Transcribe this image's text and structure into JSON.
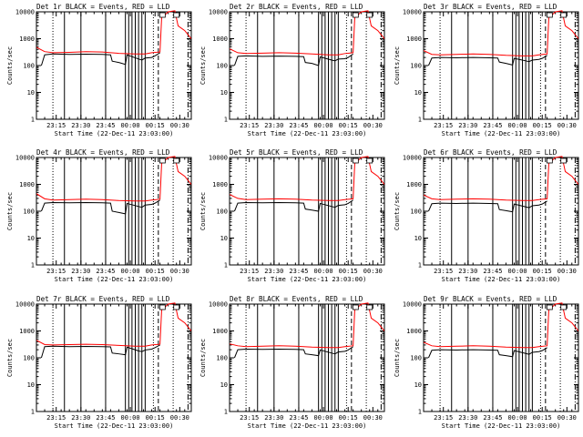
{
  "chart_data": [
    {
      "type": "line",
      "title": "Det 1r BLACK = Events, RED = LLD",
      "xlabel": "Start Time (22-Dec-11 23:03:00)",
      "ylabel": "Counts/sec",
      "x_tick_labels": [
        "23:15",
        "23:30",
        "23:45",
        "00:00",
        "00:15",
        "00:30"
      ],
      "y_tick_labels": [
        "1",
        "10",
        "100",
        "1000",
        "10000"
      ],
      "yscale": "log",
      "ylim": [
        1,
        10000
      ],
      "xlim_minutes": [
        0,
        94
      ],
      "series": [
        {
          "name": "BLACK = Events",
          "color": "#000000",
          "x": [
            3,
            5,
            10,
            20,
            30,
            40,
            45,
            46,
            50,
            54,
            55,
            62,
            64,
            66,
            70,
            72,
            75
          ],
          "y": [
            100,
            250,
            270,
            260,
            265,
            260,
            250,
            145,
            130,
            110,
            250,
            175,
            160,
            190,
            200,
            230,
            300
          ]
        },
        {
          "name": "RED = LLD",
          "color": "#ff0000",
          "x": [
            0,
            5,
            10,
            20,
            30,
            40,
            50,
            60,
            66,
            70,
            75,
            76,
            80,
            84,
            86,
            90,
            94
          ],
          "y": [
            480,
            330,
            300,
            310,
            330,
            320,
            285,
            270,
            270,
            300,
            320,
            6000,
            10000,
            11000,
            3000,
            2000,
            1000
          ]
        }
      ]
    },
    {
      "type": "line",
      "title": "Det 2r BLACK = Events, RED = LLD",
      "xlabel": "Start Time (22-Dec-11 23:03:00)",
      "ylabel": "Counts/sec",
      "x_tick_labels": [
        "23:15",
        "23:30",
        "23:45",
        "00:00",
        "00:15",
        "00:30"
      ],
      "y_tick_labels": [
        "1",
        "10",
        "100",
        "1000",
        "10000"
      ],
      "yscale": "log",
      "ylim": [
        1,
        10000
      ],
      "xlim_minutes": [
        0,
        94
      ],
      "series": [
        {
          "name": "BLACK = Events",
          "color": "#000000",
          "x": [
            3,
            5,
            10,
            20,
            30,
            40,
            45,
            46,
            50,
            54,
            55,
            62,
            64,
            66,
            70,
            72,
            75
          ],
          "y": [
            100,
            220,
            230,
            220,
            225,
            220,
            215,
            130,
            120,
            100,
            210,
            160,
            150,
            175,
            180,
            200,
            270
          ]
        },
        {
          "name": "RED = LLD",
          "color": "#ff0000",
          "x": [
            0,
            5,
            10,
            20,
            30,
            40,
            50,
            60,
            66,
            70,
            75,
            76,
            80,
            84,
            86,
            90,
            94
          ],
          "y": [
            420,
            300,
            280,
            290,
            300,
            290,
            270,
            250,
            250,
            280,
            300,
            6000,
            10000,
            11000,
            3000,
            2000,
            1000
          ]
        }
      ]
    },
    {
      "type": "line",
      "title": "Det 3r BLACK = Events, RED = LLD",
      "xlabel": "Start Time (22-Dec-11 23:03:00)",
      "ylabel": "Counts/sec",
      "x_tick_labels": [
        "23:15",
        "23:30",
        "23:45",
        "00:00",
        "00:15",
        "00:30"
      ],
      "y_tick_labels": [
        "1",
        "10",
        "100",
        "1000",
        "10000"
      ],
      "yscale": "log",
      "ylim": [
        1,
        10000
      ],
      "xlim_minutes": [
        0,
        94
      ],
      "series": [
        {
          "name": "BLACK = Events",
          "color": "#000000",
          "x": [
            3,
            5,
            10,
            20,
            30,
            40,
            45,
            46,
            50,
            54,
            55,
            62,
            64,
            66,
            70,
            72,
            75
          ],
          "y": [
            100,
            190,
            200,
            195,
            200,
            195,
            190,
            135,
            120,
            105,
            185,
            150,
            140,
            160,
            170,
            185,
            240
          ]
        },
        {
          "name": "RED = LLD",
          "color": "#ff0000",
          "x": [
            0,
            5,
            10,
            20,
            30,
            40,
            50,
            60,
            66,
            70,
            75,
            76,
            80,
            84,
            86,
            90,
            94
          ],
          "y": [
            360,
            260,
            250,
            260,
            270,
            260,
            240,
            230,
            230,
            250,
            270,
            6000,
            10000,
            11000,
            3000,
            2000,
            1000
          ]
        }
      ]
    },
    {
      "type": "line",
      "title": "Det 4r BLACK = Events, RED = LLD",
      "xlabel": "Start Time (22-Dec-11 23:03:00)",
      "ylabel": "Counts/sec",
      "x_tick_labels": [
        "23:15",
        "23:30",
        "23:45",
        "00:00",
        "00:15",
        "00:30"
      ],
      "y_tick_labels": [
        "1",
        "10",
        "100",
        "1000",
        "10000"
      ],
      "yscale": "log",
      "ylim": [
        1,
        10000
      ],
      "xlim_minutes": [
        0,
        94
      ],
      "series": [
        {
          "name": "BLACK = Events",
          "color": "#000000",
          "x": [
            3,
            5,
            10,
            20,
            30,
            40,
            45,
            46,
            50,
            54,
            55,
            62,
            64,
            66,
            70,
            72,
            75
          ],
          "y": [
            100,
            200,
            210,
            205,
            210,
            205,
            200,
            100,
            90,
            80,
            195,
            150,
            140,
            170,
            180,
            200,
            260
          ]
        },
        {
          "name": "RED = LLD",
          "color": "#ff0000",
          "x": [
            0,
            5,
            10,
            20,
            30,
            40,
            50,
            60,
            66,
            70,
            75,
            76,
            80,
            84,
            86,
            90,
            94
          ],
          "y": [
            450,
            290,
            260,
            270,
            280,
            270,
            250,
            240,
            240,
            260,
            280,
            6000,
            10000,
            11000,
            3000,
            2000,
            1000
          ]
        }
      ]
    },
    {
      "type": "line",
      "title": "Det 5r BLACK = Events, RED = LLD",
      "xlabel": "Start Time (22-Dec-11 23:03:00)",
      "ylabel": "Counts/sec",
      "x_tick_labels": [
        "23:15",
        "23:30",
        "23:45",
        "00:00",
        "00:15",
        "00:30"
      ],
      "y_tick_labels": [
        "1",
        "10",
        "100",
        "1000",
        "10000"
      ],
      "yscale": "log",
      "ylim": [
        1,
        10000
      ],
      "xlim_minutes": [
        0,
        94
      ],
      "series": [
        {
          "name": "BLACK = Events",
          "color": "#000000",
          "x": [
            3,
            5,
            10,
            20,
            30,
            40,
            45,
            46,
            50,
            54,
            55,
            62,
            64,
            66,
            70,
            72,
            75
          ],
          "y": [
            100,
            200,
            210,
            205,
            210,
            205,
            200,
            120,
            110,
            100,
            195,
            150,
            140,
            165,
            175,
            195,
            260
          ]
        },
        {
          "name": "RED = LLD",
          "color": "#ff0000",
          "x": [
            0,
            5,
            10,
            20,
            30,
            40,
            50,
            60,
            66,
            70,
            75,
            76,
            80,
            84,
            86,
            90,
            94
          ],
          "y": [
            420,
            300,
            270,
            280,
            290,
            280,
            260,
            250,
            250,
            270,
            290,
            6000,
            10000,
            11000,
            3000,
            2000,
            1000
          ]
        }
      ]
    },
    {
      "type": "line",
      "title": "Det 6r BLACK = Events, RED = LLD",
      "xlabel": "Start Time (22-Dec-11 23:03:00)",
      "ylabel": "Counts/sec",
      "x_tick_labels": [
        "23:15",
        "23:30",
        "23:45",
        "00:00",
        "00:15",
        "00:30"
      ],
      "y_tick_labels": [
        "1",
        "10",
        "100",
        "1000",
        "10000"
      ],
      "yscale": "log",
      "ylim": [
        1,
        10000
      ],
      "xlim_minutes": [
        0,
        94
      ],
      "series": [
        {
          "name": "BLACK = Events",
          "color": "#000000",
          "x": [
            3,
            5,
            10,
            20,
            30,
            40,
            45,
            46,
            50,
            54,
            55,
            62,
            64,
            66,
            70,
            72,
            75
          ],
          "y": [
            100,
            190,
            200,
            195,
            200,
            195,
            190,
            115,
            105,
            95,
            185,
            145,
            135,
            160,
            170,
            185,
            240
          ]
        },
        {
          "name": "RED = LLD",
          "color": "#ff0000",
          "x": [
            0,
            5,
            10,
            20,
            30,
            40,
            50,
            60,
            66,
            70,
            75,
            76,
            80,
            84,
            86,
            90,
            94
          ],
          "y": [
            400,
            290,
            270,
            280,
            290,
            280,
            260,
            250,
            250,
            270,
            290,
            6000,
            10000,
            11000,
            3000,
            2000,
            1000
          ]
        }
      ]
    },
    {
      "type": "line",
      "title": "Det 7r BLACK = Events, RED = LLD",
      "xlabel": "Start Time (22-Dec-11 23:03:00)",
      "ylabel": "Counts/sec",
      "x_tick_labels": [
        "23:15",
        "23:30",
        "23:45",
        "00:00",
        "00:15",
        "00:30"
      ],
      "y_tick_labels": [
        "1",
        "10",
        "100",
        "1000",
        "10000"
      ],
      "yscale": "log",
      "ylim": [
        1,
        10000
      ],
      "xlim_minutes": [
        0,
        94
      ],
      "series": [
        {
          "name": "BLACK = Events",
          "color": "#000000",
          "x": [
            3,
            5,
            10,
            20,
            30,
            40,
            45,
            46,
            50,
            54,
            55,
            62,
            64,
            66,
            70,
            72,
            75
          ],
          "y": [
            100,
            260,
            270,
            260,
            265,
            260,
            255,
            150,
            140,
            130,
            250,
            180,
            170,
            195,
            210,
            240,
            300
          ]
        },
        {
          "name": "RED = LLD",
          "color": "#ff0000",
          "x": [
            0,
            5,
            10,
            20,
            30,
            40,
            50,
            60,
            66,
            70,
            75,
            76,
            80,
            84,
            86,
            90,
            94
          ],
          "y": [
            450,
            310,
            300,
            310,
            320,
            310,
            290,
            270,
            270,
            300,
            320,
            6000,
            10000,
            11000,
            3000,
            2000,
            1000
          ]
        }
      ]
    },
    {
      "type": "line",
      "title": "Det 8r BLACK = Events, RED = LLD",
      "xlabel": "Start Time (22-Dec-11 23:03:00)",
      "ylabel": "Counts/sec",
      "x_tick_labels": [
        "23:15",
        "23:30",
        "23:45",
        "00:00",
        "00:15",
        "00:30"
      ],
      "y_tick_labels": [
        "1",
        "10",
        "100",
        "1000",
        "10000"
      ],
      "yscale": "log",
      "ylim": [
        1,
        10000
      ],
      "xlim_minutes": [
        0,
        94
      ],
      "series": [
        {
          "name": "BLACK = Events",
          "color": "#000000",
          "x": [
            3,
            5,
            10,
            20,
            30,
            40,
            45,
            46,
            50,
            54,
            55,
            62,
            64,
            66,
            70,
            72,
            75
          ],
          "y": [
            100,
            200,
            210,
            205,
            210,
            205,
            200,
            140,
            130,
            120,
            195,
            150,
            140,
            165,
            175,
            195,
            260
          ]
        },
        {
          "name": "RED = LLD",
          "color": "#ff0000",
          "x": [
            0,
            5,
            10,
            20,
            30,
            40,
            50,
            60,
            66,
            70,
            75,
            76,
            80,
            84,
            86,
            90,
            94
          ],
          "y": [
            330,
            280,
            260,
            270,
            280,
            270,
            250,
            240,
            240,
            260,
            280,
            6000,
            10000,
            11000,
            3000,
            2000,
            1000
          ]
        }
      ]
    },
    {
      "type": "line",
      "title": "Det 9r BLACK = Events, RED = LLD",
      "xlabel": "Start Time (22-Dec-11 23:03:00)",
      "ylabel": "Counts/sec",
      "x_tick_labels": [
        "23:15",
        "23:30",
        "23:45",
        "00:00",
        "00:15",
        "00:30"
      ],
      "y_tick_labels": [
        "1",
        "10",
        "100",
        "1000",
        "10000"
      ],
      "yscale": "log",
      "ylim": [
        1,
        10000
      ],
      "xlim_minutes": [
        0,
        94
      ],
      "series": [
        {
          "name": "BLACK = Events",
          "color": "#000000",
          "x": [
            3,
            5,
            10,
            20,
            30,
            40,
            45,
            46,
            50,
            54,
            55,
            62,
            64,
            66,
            70,
            72,
            75
          ],
          "y": [
            100,
            190,
            200,
            195,
            200,
            195,
            190,
            130,
            120,
            110,
            185,
            145,
            135,
            160,
            170,
            185,
            240
          ]
        },
        {
          "name": "RED = LLD",
          "color": "#ff0000",
          "x": [
            0,
            5,
            10,
            20,
            30,
            40,
            50,
            60,
            66,
            70,
            75,
            76,
            80,
            84,
            86,
            90,
            94
          ],
          "y": [
            380,
            280,
            260,
            270,
            280,
            270,
            250,
            240,
            240,
            260,
            280,
            6000,
            10000,
            11000,
            3000,
            2000,
            1000
          ]
        }
      ]
    }
  ],
  "x_tick_minutes": [
    12,
    27,
    42,
    57,
    72,
    87
  ],
  "vertical_markers": {
    "solid_minutes": [
      17,
      27,
      42,
      54,
      56,
      58,
      60,
      62,
      64,
      66
    ],
    "dotted_minutes": [
      10,
      71,
      83,
      94
    ],
    "dashed_minutes": [
      74
    ],
    "dash_dot_minutes": [
      92
    ]
  }
}
